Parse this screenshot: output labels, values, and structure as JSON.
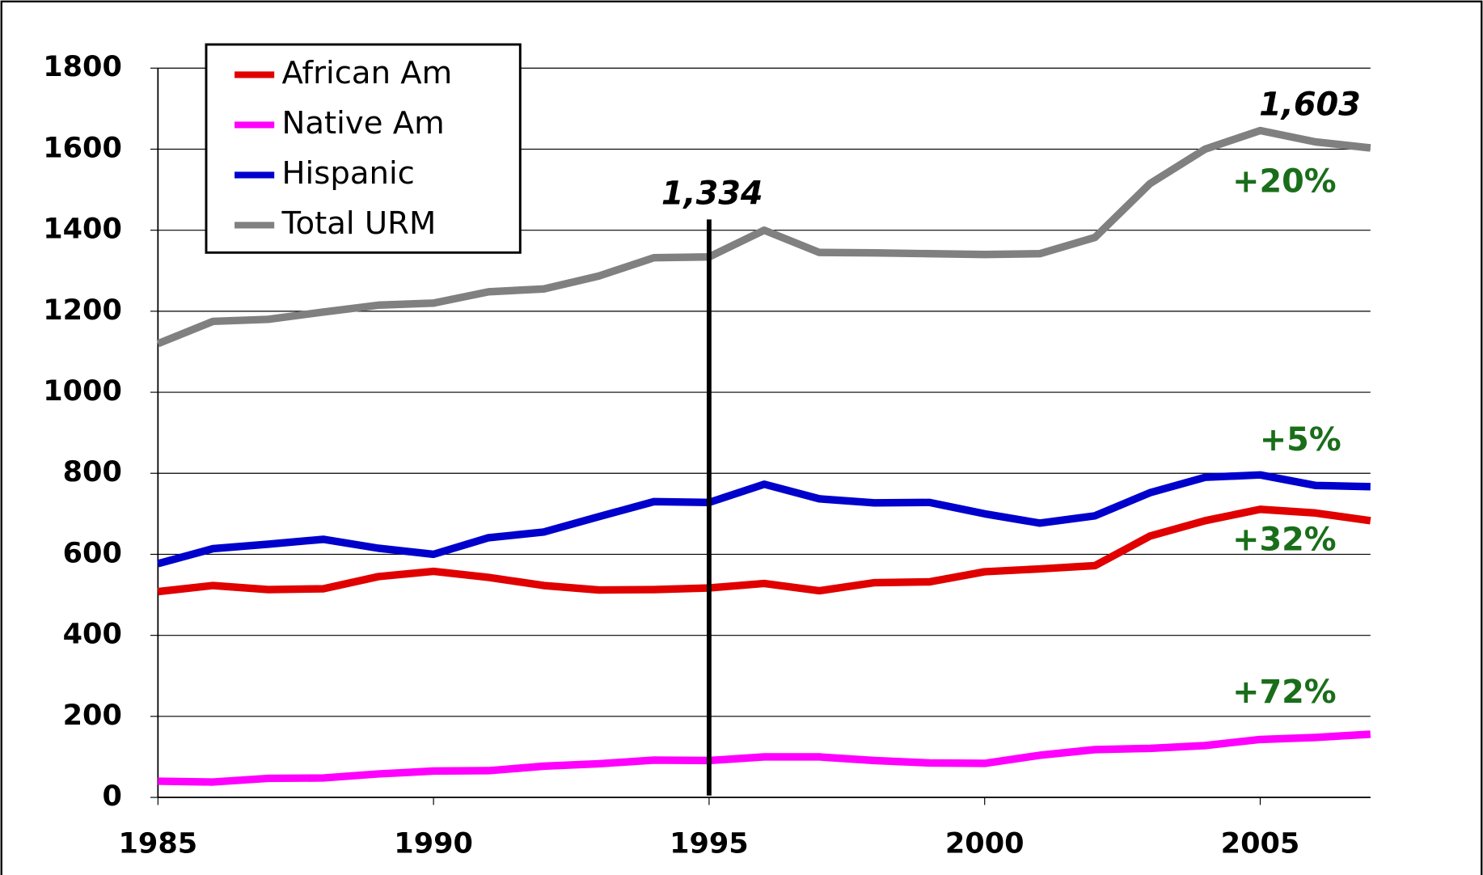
{
  "chart_data": {
    "type": "line",
    "x": [
      1985,
      1986,
      1987,
      1988,
      1989,
      1990,
      1991,
      1992,
      1993,
      1994,
      1995,
      1996,
      1997,
      1998,
      1999,
      2000,
      2001,
      2002,
      2003,
      2004,
      2005,
      2006,
      2007
    ],
    "series": [
      {
        "name": "African Am",
        "color": "#e00000",
        "values": [
          508,
          523,
          513,
          515,
          545,
          558,
          543,
          523,
          512,
          513,
          517,
          528,
          510,
          530,
          532,
          557,
          564,
          572,
          645,
          683,
          711,
          702,
          683
        ]
      },
      {
        "name": "Native Am",
        "color": "#ff00ff",
        "values": [
          40,
          38,
          47,
          48,
          58,
          65,
          66,
          77,
          83,
          92,
          91,
          100,
          100,
          91,
          85,
          84,
          104,
          118,
          121,
          128,
          143,
          148,
          156
        ]
      },
      {
        "name": "Hispanic",
        "color": "#0000cc",
        "values": [
          577,
          614,
          625,
          637,
          615,
          600,
          641,
          655,
          693,
          730,
          728,
          773,
          737,
          727,
          728,
          700,
          677,
          695,
          752,
          790,
          796,
          770,
          767
        ]
      },
      {
        "name": "Total URM",
        "color": "#808080",
        "values": [
          1120,
          1175,
          1180,
          1198,
          1215,
          1220,
          1248,
          1255,
          1287,
          1332,
          1334,
          1400,
          1345,
          1344,
          1342,
          1340,
          1342,
          1382,
          1515,
          1600,
          1646,
          1618,
          1603
        ]
      }
    ],
    "xlim": [
      1985,
      2007
    ],
    "xticks": [
      1985,
      1990,
      1995,
      2000,
      2005
    ],
    "ylim": [
      0,
      1800
    ],
    "yticks": [
      0,
      200,
      400,
      600,
      800,
      1000,
      1200,
      1400,
      1600,
      1800
    ],
    "grid": true,
    "legend": "top-left",
    "vline": 1995,
    "annotations": [
      "1,334",
      "1,603",
      "+20%",
      "+5%",
      "+32%",
      "+72%"
    ]
  }
}
